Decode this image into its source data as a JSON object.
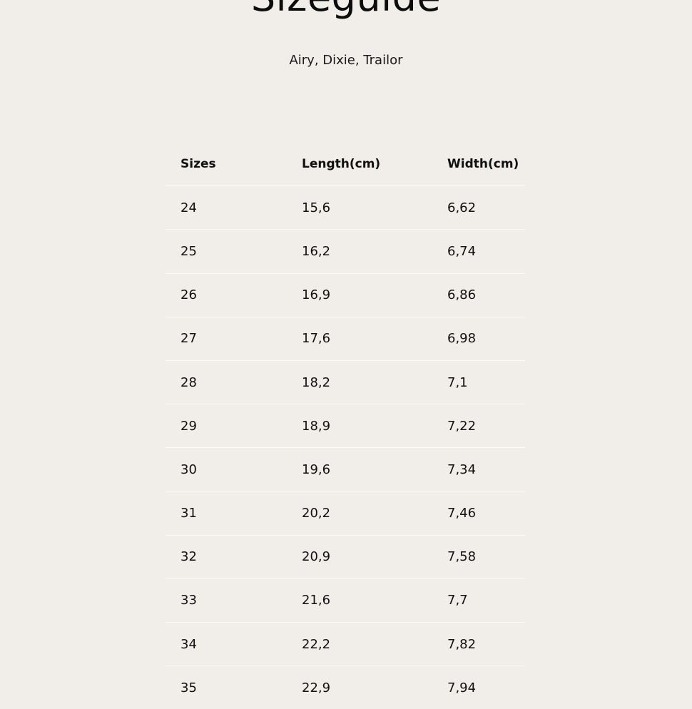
{
  "header": {
    "title": "Sizeguide",
    "subtitle": "Airy, Dixie, Trailor"
  },
  "table": {
    "columns": [
      "Sizes",
      "Length(cm)",
      "Width(cm)"
    ],
    "rows": [
      [
        "24",
        "15,6",
        "6,62"
      ],
      [
        "25",
        "16,2",
        "6,74"
      ],
      [
        "26",
        "16,9",
        "6,86"
      ],
      [
        "27",
        "17,6",
        "6,98"
      ],
      [
        "28",
        "18,2",
        "7,1"
      ],
      [
        "29",
        "18,9",
        "7,22"
      ],
      [
        "30",
        "19,6",
        "7,34"
      ],
      [
        "31",
        "20,2",
        "7,46"
      ],
      [
        "32",
        "20,9",
        "7,58"
      ],
      [
        "33",
        "21,6",
        "7,7"
      ],
      [
        "34",
        "22,2",
        "7,82"
      ],
      [
        "35",
        "22,9",
        "7,94"
      ]
    ]
  },
  "colors": {
    "background": "#f1ede8",
    "text": "#111111",
    "divider": "#fbf9f6"
  }
}
